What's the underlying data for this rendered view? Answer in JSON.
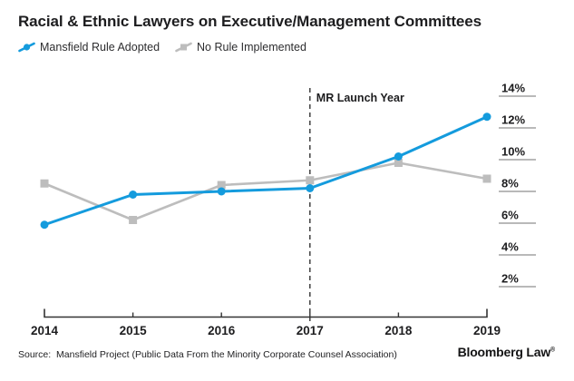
{
  "title": "Racial & Ethnic Lawyers on Executive/Management Committees",
  "legend": [
    {
      "label": "Mansfield Rule Adopted",
      "color": "#149bdd",
      "marker": "circle"
    },
    {
      "label": "No Rule Implemented",
      "color": "#bdbdbd",
      "marker": "square"
    }
  ],
  "chart_data": {
    "type": "line",
    "x": [
      2014,
      2015,
      2016,
      2017,
      2018,
      2019
    ],
    "series": [
      {
        "name": "Mansfield Rule Adopted",
        "color": "#149bdd",
        "marker": "circle",
        "values": [
          5.9,
          7.8,
          8.0,
          8.2,
          10.2,
          12.7
        ]
      },
      {
        "name": "No Rule Implemented",
        "color": "#bdbdbd",
        "marker": "square",
        "values": [
          8.5,
          6.2,
          8.4,
          8.7,
          9.8,
          8.8
        ]
      }
    ],
    "title": "Racial & Ethnic Lawyers on Executive/Management Committees",
    "xlabel": "",
    "ylabel": "",
    "ylim": [
      2,
      14
    ],
    "y_ticks": [
      {
        "label": "14%",
        "value": 14
      },
      {
        "label": "12%",
        "value": 12
      },
      {
        "label": "10%",
        "value": 10
      },
      {
        "label": "8%",
        "value": 8
      },
      {
        "label": "6%",
        "value": 6
      },
      {
        "label": "4%",
        "value": 4
      },
      {
        "label": "2%",
        "value": 2
      }
    ],
    "y_tick_side": "right",
    "grid": false,
    "legend_position": "top-left",
    "annotation": {
      "label": "MR Launch Year",
      "x": 2017
    }
  },
  "footer": {
    "source": "Source:  Mansfield Project (Public Data From the Minority Corporate Counsel Association)",
    "brand": "Bloomberg Law",
    "brand_mark": "®"
  },
  "colors": {
    "accent_blue": "#149bdd",
    "neutral_gray": "#bdbdbd",
    "axis": "#333333",
    "tick_line": "#8f8f8f",
    "text_dark": "#1d1d1f"
  }
}
